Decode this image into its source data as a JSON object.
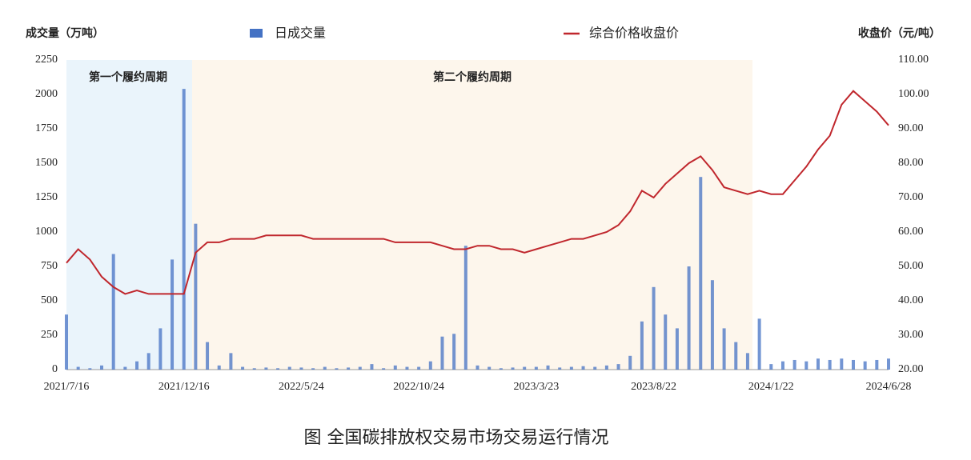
{
  "chart_data": {
    "type": "bar-line",
    "title": "图 全国碳排放权交易市场交易运行情况",
    "y_label": "成交量（万吨）",
    "y2_label": "收盘价（元/吨）",
    "annotations": [
      "第一个履约周期",
      "第二个履约周期"
    ],
    "categories": [
      "2021/7/16",
      null,
      null,
      null,
      null,
      null,
      null,
      null,
      null,
      null,
      "2021/12/16",
      null,
      null,
      null,
      null,
      null,
      null,
      null,
      null,
      null,
      "2022/5/24",
      null,
      null,
      null,
      null,
      null,
      null,
      null,
      null,
      null,
      "2022/10/24",
      null,
      null,
      null,
      null,
      null,
      null,
      null,
      null,
      null,
      "2023/3/23",
      null,
      null,
      null,
      null,
      null,
      null,
      null,
      null,
      null,
      "2023/8/22",
      null,
      null,
      null,
      null,
      null,
      null,
      null,
      null,
      null,
      "2024/1/22",
      null,
      null,
      null,
      null,
      null,
      null,
      null,
      null,
      null,
      "2024/6/28"
    ],
    "series": [
      {
        "name": "日成交量",
        "color": "#4472c4",
        "type": "bar",
        "values": [
          400,
          20,
          10,
          30,
          840,
          20,
          60,
          120,
          300,
          800,
          2040,
          1060,
          200,
          30,
          120,
          20,
          10,
          15,
          10,
          20,
          15,
          10,
          20,
          10,
          15,
          20,
          40,
          10,
          30,
          20,
          20,
          60,
          240,
          260,
          900,
          30,
          20,
          10,
          15,
          20,
          20,
          30,
          15,
          20,
          25,
          20,
          30,
          40,
          100,
          350,
          600,
          400,
          300,
          750,
          1400,
          650,
          300,
          200,
          120,
          370,
          40,
          60,
          70,
          60,
          80,
          70,
          80,
          70,
          60,
          70,
          80
        ]
      },
      {
        "name": "综合价格收盘价",
        "color": "#c0272d",
        "type": "line",
        "axis": "y2",
        "values": [
          51,
          55,
          52,
          47,
          44,
          42,
          43,
          42,
          42,
          42,
          42,
          54,
          57,
          57,
          58,
          58,
          58,
          59,
          59,
          59,
          59,
          58,
          58,
          58,
          58,
          58,
          58,
          58,
          57,
          57,
          57,
          57,
          56,
          55,
          55,
          56,
          56,
          55,
          55,
          54,
          55,
          56,
          57,
          58,
          58,
          59,
          60,
          62,
          66,
          72,
          70,
          74,
          77,
          80,
          82,
          78,
          73,
          72,
          71,
          72,
          71,
          71,
          75,
          79,
          84,
          88,
          97,
          101,
          98,
          95,
          91
        ]
      }
    ],
    "ylim": [
      0,
      2250
    ],
    "yticks": [
      0,
      250,
      500,
      750,
      1000,
      1250,
      1500,
      1750,
      2000,
      2250
    ],
    "y2lim": [
      20,
      110
    ],
    "y2ticks": [
      {
        "value": 20,
        "label": "20.00"
      },
      {
        "value": 30,
        "label": "30.00"
      },
      {
        "value": 40,
        "label": "40.00"
      },
      {
        "value": 50,
        "label": "50.00"
      },
      {
        "value": 60,
        "label": "60.00"
      },
      {
        "value": 70,
        "label": "70.00"
      },
      {
        "value": 80,
        "label": "80.00"
      },
      {
        "value": 90,
        "label": "90.00"
      },
      {
        "value": 100,
        "label": "100.00"
      },
      {
        "value": 110,
        "label": "110.00"
      }
    ]
  }
}
